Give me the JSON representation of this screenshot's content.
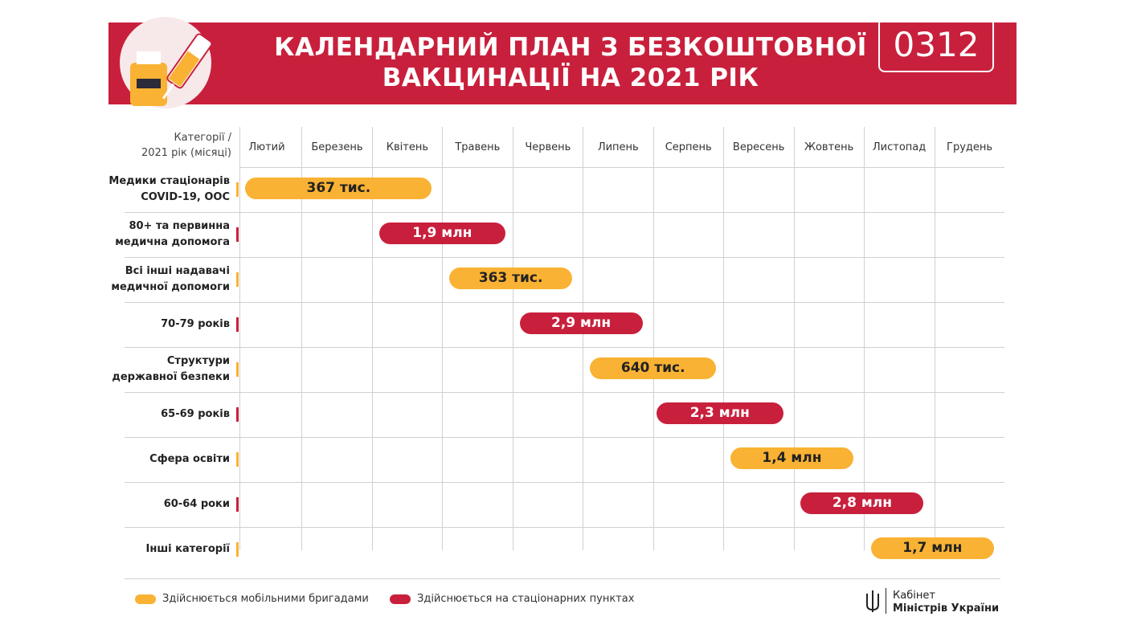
{
  "chart_data": {
    "type": "gantt",
    "title_lines": [
      "КАЛЕНДАРНИЙ ПЛАН З БЕЗКОШТОВНОЇ",
      "ВАКЦИНАЦІЇ НА 2021 РІК"
    ],
    "logo": "0312",
    "corner_label_lines": [
      "Категорії /",
      "2021 рік (місяці)"
    ],
    "months": [
      "Лютий",
      "Березень",
      "Квітень",
      "Травень",
      "Червень",
      "Липень",
      "Серпень",
      "Вересень",
      "Жовтень",
      "Листопад",
      "Грудень"
    ],
    "xlim": [
      0,
      11
    ],
    "series": [
      {
        "name": "Здійснюється мобільними бригадами",
        "color": "#f9b233"
      },
      {
        "name": "Здійснюється на стаціонарних пунктах",
        "color": "#c8203c"
      }
    ],
    "rows": [
      {
        "label_lines": [
          "Медики стаціонарів",
          "COVID-19, ООС"
        ],
        "value_label": "367 тис.",
        "start": 0.2,
        "end": 2.85,
        "series": 0
      },
      {
        "label_lines": [
          "80+ та первинна",
          "медична допомога"
        ],
        "value_label": "1,9 млн",
        "start": 2.1,
        "end": 3.9,
        "series": 1
      },
      {
        "label_lines": [
          "Всі інші надавачі",
          "медичної допомоги"
        ],
        "value_label": "363 тис.",
        "start": 3.1,
        "end": 4.85,
        "series": 0
      },
      {
        "label_lines": [
          "70-79 років"
        ],
        "value_label": "2,9 млн",
        "start": 4.1,
        "end": 5.85,
        "series": 1
      },
      {
        "label_lines": [
          "Структури",
          "державної безпеки"
        ],
        "value_label": "640 тис.",
        "start": 5.1,
        "end": 6.9,
        "series": 0
      },
      {
        "label_lines": [
          "65-69 років"
        ],
        "value_label": "2,3 млн",
        "start": 6.05,
        "end": 7.85,
        "series": 1
      },
      {
        "label_lines": [
          "Сфера освіти"
        ],
        "value_label": "1,4 млн",
        "start": 7.1,
        "end": 8.85,
        "series": 0
      },
      {
        "label_lines": [
          "60-64 роки"
        ],
        "value_label": "2,8 млн",
        "start": 8.1,
        "end": 9.85,
        "series": 1
      },
      {
        "label_lines": [
          "Інші категорії"
        ],
        "value_label": "1,7 млн",
        "start": 9.1,
        "end": 10.85,
        "series": 0
      }
    ],
    "footer_lines": [
      "Кабінет",
      "Міністрів України"
    ]
  }
}
